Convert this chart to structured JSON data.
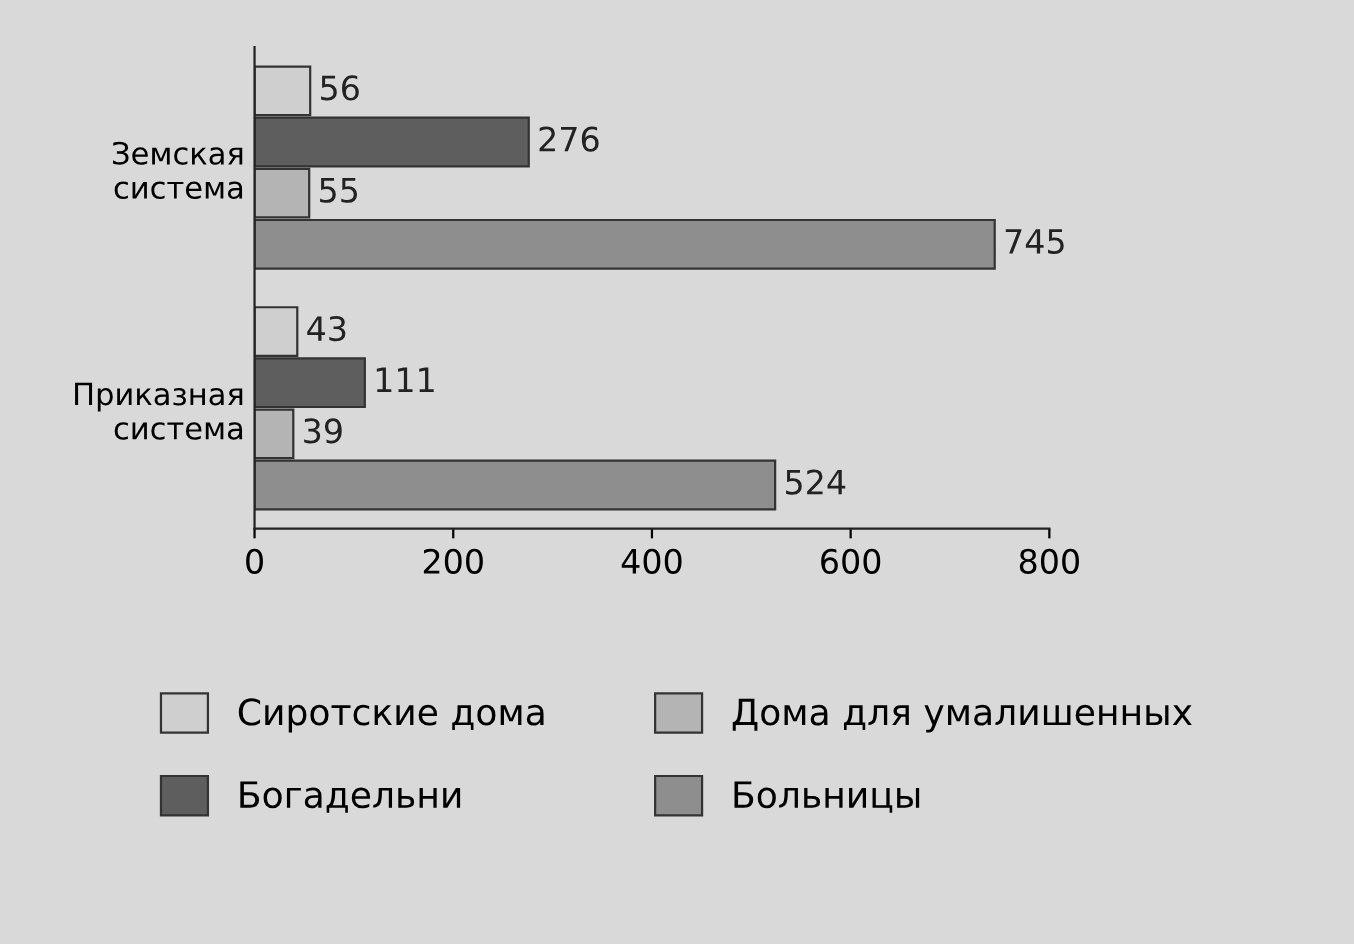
{
  "chart_data": {
    "type": "bar",
    "orientation": "horizontal",
    "categories": [
      "Земская\nсистема",
      "Приказная\nсистема"
    ],
    "series": [
      {
        "name": "Сиротские дома",
        "color": "#cfcfcf",
        "values": [
          56,
          43
        ]
      },
      {
        "name": "Богадельни",
        "color": "#5e5e5e",
        "values": [
          276,
          111
        ]
      },
      {
        "name": "Дома для умалишенных",
        "color": "#b4b4b4",
        "values": [
          55,
          39
        ]
      },
      {
        "name": "Больницы",
        "color": "#8e8e8e",
        "values": [
          745,
          524
        ]
      }
    ],
    "xlim": [
      0,
      800
    ],
    "xticks": [
      0,
      200,
      400,
      600,
      800
    ],
    "data_labels": true,
    "grid": false,
    "legend": "bottom"
  }
}
